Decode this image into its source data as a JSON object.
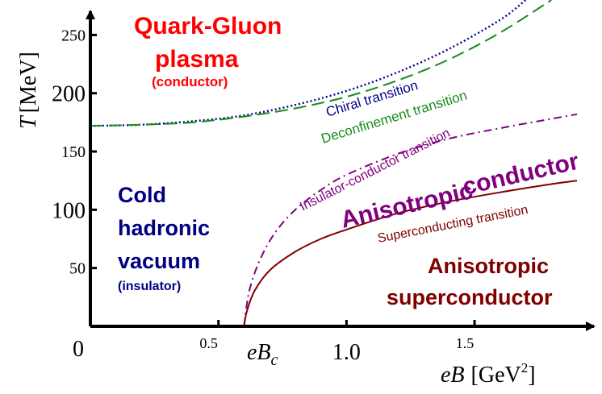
{
  "chart_data": {
    "type": "line",
    "xlabel": {
      "italic": "eB",
      "unit": "[GeV",
      "unit_sup": "2",
      "unit_close": "]"
    },
    "ylabel": {
      "italic": "T",
      "unit": "[MeV]"
    },
    "xlim": [
      0,
      1.9
    ],
    "ylim": [
      0,
      280
    ],
    "x_ticks": [
      {
        "value": 0.5,
        "label": "0.5"
      },
      {
        "value": 1.0,
        "label": "1.0"
      },
      {
        "value": 1.5,
        "label": "1.5"
      }
    ],
    "y_ticks": [
      {
        "value": 50,
        "label": "50"
      },
      {
        "value": 100,
        "label": "100"
      },
      {
        "value": 150,
        "label": "150"
      },
      {
        "value": 200,
        "label": "200"
      },
      {
        "value": 250,
        "label": "250"
      }
    ],
    "origin_label": "0",
    "critical_point": {
      "x": 0.6,
      "label_main": "eB",
      "label_sub": "c"
    },
    "series": [
      {
        "name": "Chiral transition",
        "color": "#00008b",
        "style": "dotted",
        "x": [
          0,
          0.2,
          0.4,
          0.6,
          0.8,
          1.0,
          1.2,
          1.4,
          1.6,
          1.7
        ],
        "y": [
          172,
          173,
          176,
          181,
          190,
          202,
          218,
          238,
          263,
          280
        ]
      },
      {
        "name": "Deconfinement transition",
        "color": "#1a8a1a",
        "style": "dashed",
        "x": [
          0,
          0.2,
          0.4,
          0.6,
          0.8,
          1.0,
          1.2,
          1.4,
          1.6,
          1.8
        ],
        "y": [
          172,
          173,
          175,
          180,
          187,
          197,
          211,
          229,
          252,
          280
        ]
      },
      {
        "name": "Insulator-conductor transition",
        "color": "#800080",
        "style": "dashdot",
        "x": [
          0.6,
          0.62,
          0.66,
          0.72,
          0.8,
          0.9,
          1.0,
          1.2,
          1.4,
          1.6,
          1.8,
          1.9
        ],
        "y": [
          0,
          30,
          56,
          80,
          100,
          117,
          130,
          148,
          161,
          170,
          178,
          182
        ]
      },
      {
        "name": "Superconducting transition",
        "color": "#800000",
        "style": "solid",
        "x": [
          0.6,
          0.61,
          0.64,
          0.7,
          0.8,
          0.9,
          1.0,
          1.2,
          1.4,
          1.6,
          1.8,
          1.9
        ],
        "y": [
          0,
          12,
          30,
          48,
          64,
          75,
          83,
          97,
          107,
          115,
          122,
          125
        ]
      }
    ],
    "regions": [
      {
        "lines": [
          "Quark-Gluon",
          "plasma"
        ],
        "sub": "(conductor)",
        "color": "#ff0000"
      },
      {
        "lines": [
          "Cold",
          "hadronic",
          "vacuum"
        ],
        "sub": "(insulator)",
        "color": "#000080"
      },
      {
        "lines": [
          "conductor",
          "Anisotropic"
        ],
        "sub": "",
        "color": "#800080"
      },
      {
        "lines": [
          "Anisotropic",
          "superconductor"
        ],
        "sub": "",
        "color": "#800000"
      }
    ]
  }
}
